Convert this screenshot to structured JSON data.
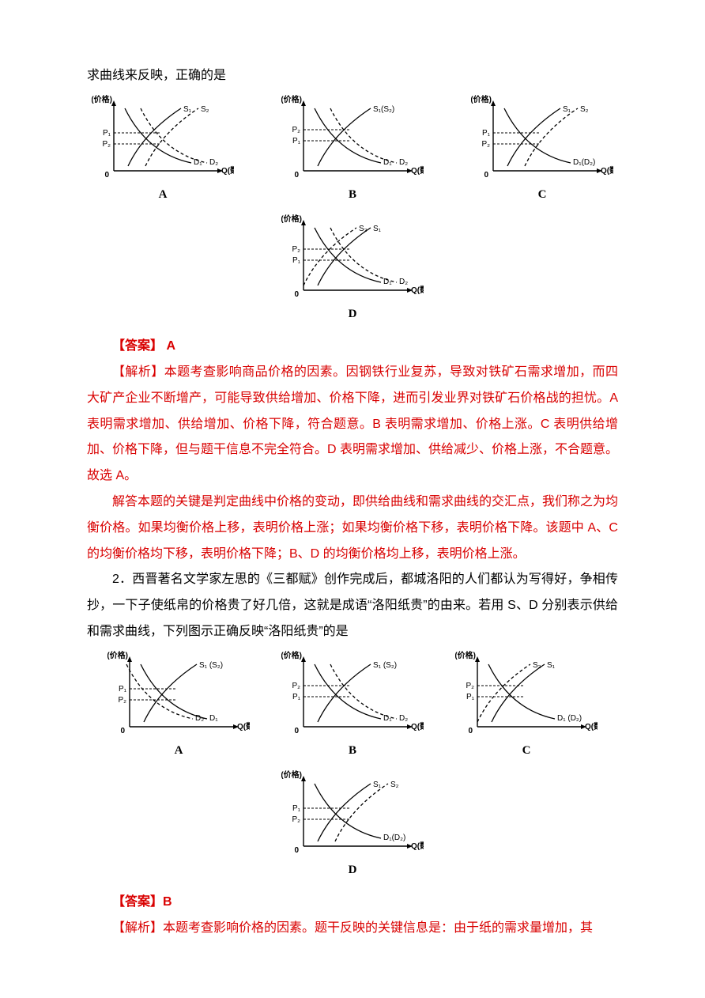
{
  "intro_line": "求曲线来反映，正确的是",
  "chart_axes": {
    "y": "P(价格)",
    "x": "Q(数量)"
  },
  "chart_style": {
    "axis_color": "#000000",
    "curve_color": "#000000",
    "font_family": "SimSun",
    "label_fontsize": 10,
    "width": 180,
    "height": 120
  },
  "q1_charts": {
    "A": {
      "s1": "S₁",
      "s2": "S₂",
      "d1": "D₁",
      "d2": "D₂",
      "p1": "P₁",
      "p2": "P₂",
      "s2_right": true,
      "d2_right": true,
      "p2_below": true
    },
    "B": {
      "s1": "S₁(S₂)",
      "d1": "D₁",
      "d2": "D₂",
      "p1": "P₁",
      "p2": "P₂",
      "d2_right": true,
      "p2_below": false
    },
    "C": {
      "s1": "S₁",
      "s2": "S₂",
      "d1": "D₁(D₂)",
      "p1": "P₁",
      "p2": "P₂",
      "s2_right": true,
      "p2_below": true
    },
    "D": {
      "s1": "S₁",
      "s2": "S₂",
      "d1": "D₁",
      "d2": "D₂",
      "p1": "P₁",
      "p2": "P₂",
      "s2_left": true,
      "d2_right": true,
      "p2_below": false
    }
  },
  "q1_answer_label": "【答案】",
  "q1_answer_value": "A",
  "q1_expl_label": "【解析】",
  "q1_expl_text": "本题考查影响商品价格的因素。因钢铁行业复苏，导致对铁矿石需求增加，而四大矿产企业不断增产，可能导致供给增加、价格下降，进而引发业界对铁矿石价格战的担忧。A 表明需求增加、供给增加、价格下降，符合题意。B 表明需求增加、价格上涨。C 表明供给增加、价格下降，但与题干信息不完全符合。D 表明需求增加、供给减少、价格上涨，不合题意。故选 A。",
  "q1_expl_para2": "解答本题的关键是判定曲线中价格的变动，即供给曲线和需求曲线的交汇点，我们称之为均衡价格。如果均衡价格上移，表明价格上涨；如果均衡价格下移，表明价格下降。该题中 A、C 的均衡价格均下移，表明价格下降；B、D 的均衡价格均上移，表明价格上涨。",
  "q2_text": "2．西晋著名文学家左思的《三都赋》创作完成后，都城洛阳的人们都认为写得好，争相传抄，一下子使纸帛的价格贵了好几倍，这就是成语“洛阳纸贵”的由来。若用 S、D 分别表示供给和需求曲线，下列图示正确反映“洛阳纸贵”的是",
  "q2_charts": {
    "A": {
      "s1": "S₁ (S₂)",
      "d1": "D₁",
      "d2": "D₂",
      "p1": "P₁",
      "p2": "P₂",
      "d2_left": true,
      "p2_below": true
    },
    "B": {
      "s1": "S₁ (S₂)",
      "d1": "D₁",
      "d2": "D₂",
      "p1": "P₁",
      "p2": "P₂",
      "d2_right": true,
      "p2_below": false
    },
    "C": {
      "s1": "S₁",
      "s2": "S₂",
      "d1": "D₁ (D₂)",
      "p1": "P₁",
      "p2": "P₂",
      "s2_left": true,
      "p2_below": false
    },
    "D": {
      "s1": "S₁",
      "s2": "S₂",
      "d1": "D₁(D₂)",
      "p1": "P₁",
      "p2": "P₂",
      "s2_right": true,
      "p2_below": true
    }
  },
  "q2_answer_label": "【答案】",
  "q2_answer_value": "B",
  "q2_expl_label": "【解析】",
  "q2_expl_text": "本题考查影响价格的因素。题干反映的关键信息是：由于纸的需求量增加，其"
}
